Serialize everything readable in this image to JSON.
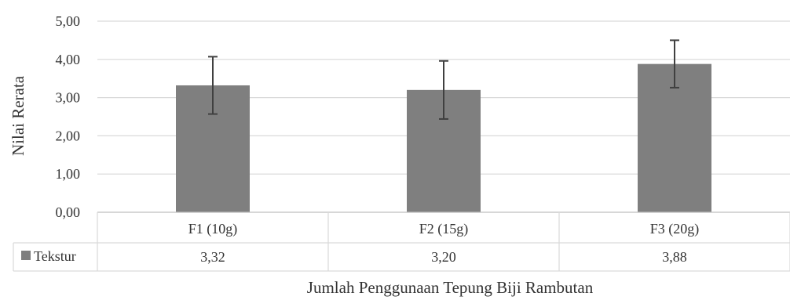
{
  "chart_data": {
    "type": "bar",
    "categories": [
      "F1 (10g)",
      "F2 (15g)",
      "F3 (20g)"
    ],
    "series": [
      {
        "name": "Tekstur",
        "values": [
          3.32,
          3.2,
          3.88
        ],
        "value_labels": [
          "3,32",
          "3,20",
          "3,88"
        ],
        "error": [
          0.75,
          0.76,
          0.62
        ],
        "color": "#7f7f7f"
      }
    ],
    "ylabel": "Nilai Rerata",
    "xlabel": "Jumlah Penggunaan Tepung Biji Rambutan",
    "ylim": [
      0,
      5
    ],
    "yticks": [
      0,
      1,
      2,
      3,
      4,
      5
    ],
    "ytick_labels": [
      "0,00",
      "1,00",
      "2,00",
      "3,00",
      "4,00",
      "5,00"
    ],
    "grid": true,
    "legend": "data-table",
    "gridline_color": "#d9d9d9",
    "error_bar_color": "#404040"
  }
}
